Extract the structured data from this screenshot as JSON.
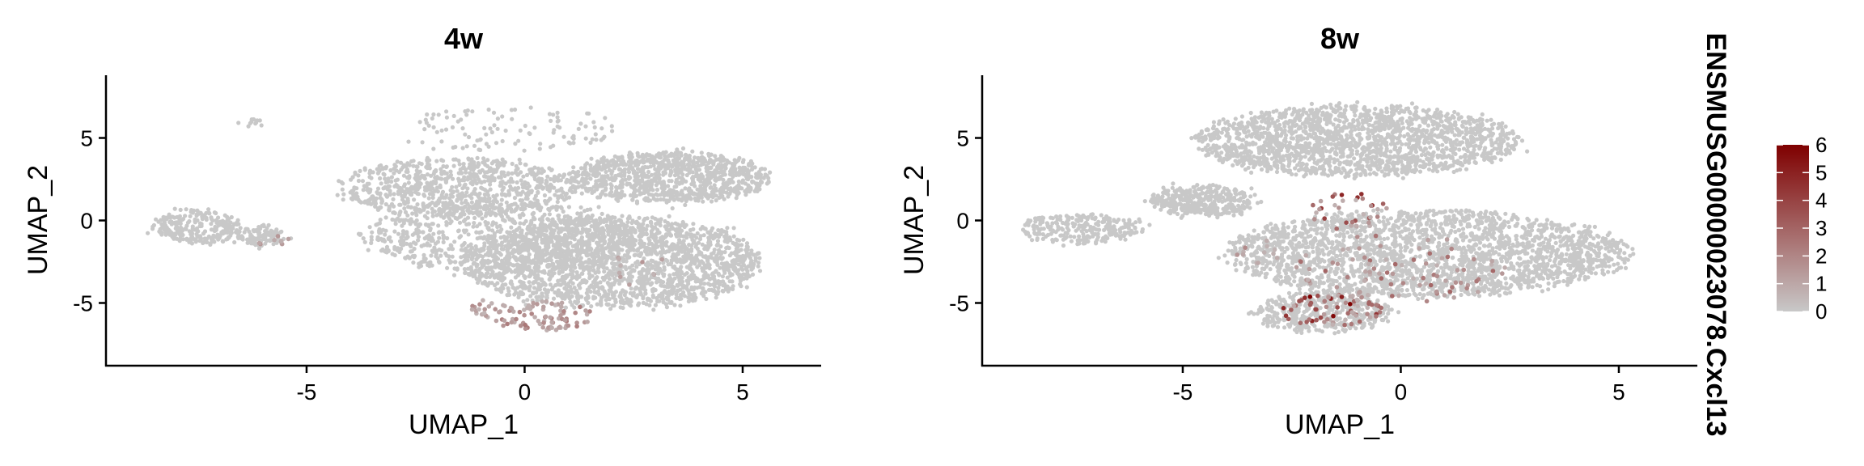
{
  "chart_data": {
    "type": "scatter",
    "feature": "ENSMUSG00000023078.Cxcl13",
    "colors": {
      "low": "#c8c8c8",
      "high": "#7f0000",
      "background": "#ffffff"
    },
    "legend": {
      "title": "ENSMUSG00000023078.Cxcl13",
      "position": "right",
      "range": [
        0,
        6
      ],
      "ticks": [
        "0",
        "1",
        "2",
        "3",
        "4",
        "5",
        "6"
      ]
    },
    "panels": [
      {
        "title": "4w",
        "xlabel": "UMAP_1",
        "ylabel": "UMAP_2",
        "xlim": [
          -9.6,
          6.8
        ],
        "ylim": [
          -8.8,
          8.8
        ],
        "xticks": [
          "-5",
          "0",
          "5"
        ],
        "yticks": [
          "-5",
          "0",
          "5"
        ],
        "grid": false,
        "clusters": [
          {
            "cx": -7.5,
            "cy": -0.4,
            "rx": 1.0,
            "ry": 1.0,
            "weight": 0.05
          },
          {
            "cx": -6.0,
            "cy": -1.0,
            "rx": 0.5,
            "ry": 0.6,
            "weight": 0.02
          },
          {
            "cx": -1.5,
            "cy": 2.0,
            "rx": 2.7,
            "ry": 1.8,
            "weight": 0.15
          },
          {
            "cx": 3.3,
            "cy": 2.6,
            "rx": 2.3,
            "ry": 1.5,
            "weight": 0.18
          },
          {
            "cx": 2.0,
            "cy": -2.5,
            "rx": 3.4,
            "ry": 2.8,
            "weight": 0.4
          },
          {
            "cx": -0.5,
            "cy": -1.0,
            "rx": 3.2,
            "ry": 2.2,
            "weight": 0.14
          },
          {
            "cx": -0.3,
            "cy": 5.5,
            "rx": 2.5,
            "ry": 1.4,
            "weight": 0.02
          },
          {
            "cx": -6.2,
            "cy": 5.9,
            "rx": 0.15,
            "ry": 0.1,
            "weight": 0.002
          }
        ],
        "expressing_cells": [
          {
            "cx": 0.4,
            "cy": -5.8,
            "rx": 1.2,
            "ry": 0.9,
            "count": 80,
            "max": 2.5
          },
          {
            "cx": -0.9,
            "cy": -5.4,
            "rx": 0.5,
            "ry": 0.6,
            "count": 20,
            "max": 2.0
          },
          {
            "cx": -5.8,
            "cy": -1.2,
            "rx": 0.4,
            "ry": 0.3,
            "count": 8,
            "max": 1.5
          },
          {
            "cx": 2.6,
            "cy": -2.5,
            "rx": 0.6,
            "ry": 1.5,
            "count": 10,
            "max": 1.5
          }
        ]
      },
      {
        "title": "8w",
        "xlabel": "UMAP_1",
        "ylabel": "UMAP_2",
        "xlim": [
          -9.6,
          6.8
        ],
        "ylim": [
          -8.8,
          8.8
        ],
        "xticks": [
          "-5",
          "0",
          "5"
        ],
        "yticks": [
          "-5",
          "0",
          "5"
        ],
        "grid": false,
        "clusters": [
          {
            "cx": -7.3,
            "cy": -0.5,
            "rx": 1.4,
            "ry": 0.9,
            "weight": 0.05
          },
          {
            "cx": -1.0,
            "cy": 4.8,
            "rx": 3.7,
            "ry": 2.1,
            "weight": 0.35
          },
          {
            "cx": 0.6,
            "cy": -2.0,
            "rx": 4.6,
            "ry": 2.6,
            "weight": 0.45
          },
          {
            "cx": -1.8,
            "cy": -5.6,
            "rx": 1.5,
            "ry": 1.2,
            "weight": 0.08
          },
          {
            "cx": -4.5,
            "cy": 1.2,
            "rx": 1.2,
            "ry": 0.9,
            "weight": 0.07
          }
        ],
        "expressing_cells": [
          {
            "cx": -1.6,
            "cy": -5.4,
            "rx": 1.2,
            "ry": 1.0,
            "count": 70,
            "max": 6
          },
          {
            "cx": -1.2,
            "cy": 0.5,
            "rx": 0.9,
            "ry": 1.2,
            "count": 35,
            "max": 5
          },
          {
            "cx": 0.0,
            "cy": -3.0,
            "rx": 2.4,
            "ry": 2.2,
            "count": 90,
            "max": 3
          },
          {
            "cx": -3.2,
            "cy": -1.8,
            "rx": 0.6,
            "ry": 0.8,
            "count": 12,
            "max": 2
          }
        ]
      }
    ]
  }
}
